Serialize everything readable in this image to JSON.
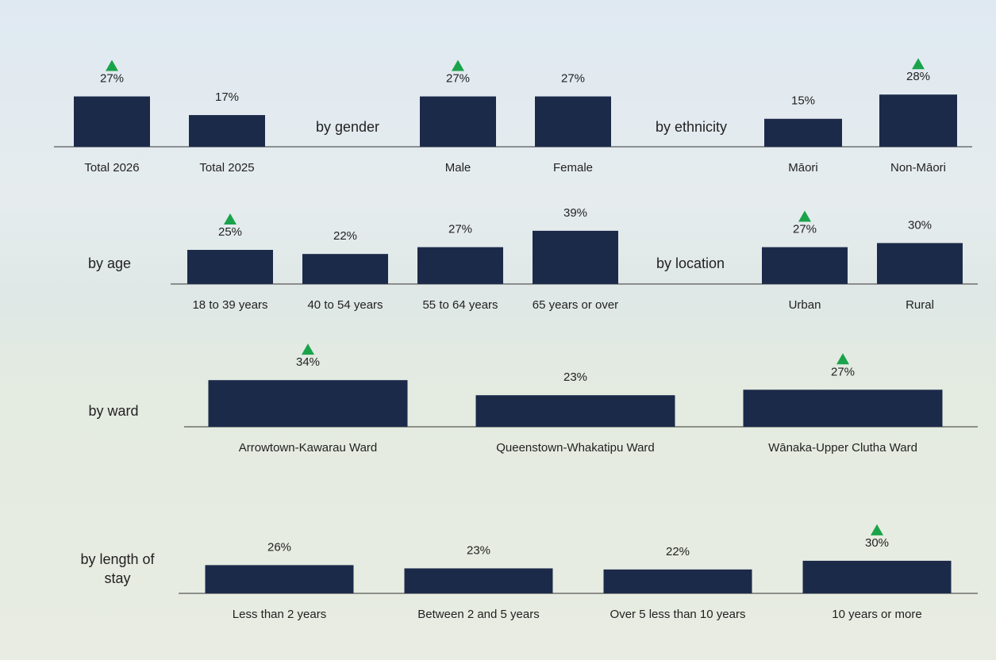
{
  "chart_data": [
    {
      "type": "bar",
      "categories": [
        "Total 2026",
        "Total 2025"
      ],
      "values": [
        27,
        17
      ],
      "value_labels": [
        "27%",
        "17%"
      ],
      "increase": [
        true,
        false
      ],
      "color": "#1c2a4a"
    },
    {
      "type": "bar",
      "title": "by gender",
      "categories": [
        "Male",
        "Female"
      ],
      "values": [
        27,
        27
      ],
      "value_labels": [
        "27%",
        "27%"
      ],
      "increase": [
        true,
        false
      ],
      "color": "#1c2a4a"
    },
    {
      "type": "bar",
      "title": "by ethnicity",
      "categories": [
        "Māori",
        "Non-Māori"
      ],
      "values": [
        15,
        28
      ],
      "value_labels": [
        "15%",
        "28%"
      ],
      "increase": [
        false,
        true
      ],
      "color": "#1c2a4a"
    },
    {
      "type": "bar",
      "title": "by age",
      "categories": [
        "18 to 39 years",
        "40 to 54 years",
        "55 to 64 years",
        "65 years or over"
      ],
      "values": [
        25,
        22,
        27,
        39
      ],
      "value_labels": [
        "25%",
        "22%",
        "27%",
        "39%"
      ],
      "increase": [
        true,
        false,
        false,
        false
      ],
      "value_label_colors": [
        "#222222",
        "#c00000",
        "#222222",
        "#2ea84a"
      ],
      "color": "#1c2a4a"
    },
    {
      "type": "bar",
      "title": "by location",
      "categories": [
        "Urban",
        "Rural"
      ],
      "values": [
        27,
        30
      ],
      "value_labels": [
        "27%",
        "30%"
      ],
      "increase": [
        true,
        false
      ],
      "color": "#1c2a4a"
    },
    {
      "type": "bar",
      "title": "by ward",
      "categories": [
        "Arrowtown-Kawarau Ward",
        "Queenstown-Whakatipu Ward",
        "Wānaka-Upper Clutha Ward"
      ],
      "values": [
        34,
        23,
        27
      ],
      "value_labels": [
        "34%",
        "23%",
        "27%"
      ],
      "increase": [
        true,
        false,
        true
      ],
      "color": "#1c2a4a"
    },
    {
      "type": "bar",
      "title": "by length of stay",
      "categories": [
        "Less than 2 years",
        "Between 2 and 5 years",
        "Over 5 less than 10 years",
        "10 years or more"
      ],
      "values": [
        26,
        23,
        22,
        30
      ],
      "value_labels": [
        "26%",
        "23%",
        "22%",
        "30%"
      ],
      "increase": [
        false,
        false,
        false,
        true
      ],
      "color": "#1c2a4a"
    }
  ]
}
